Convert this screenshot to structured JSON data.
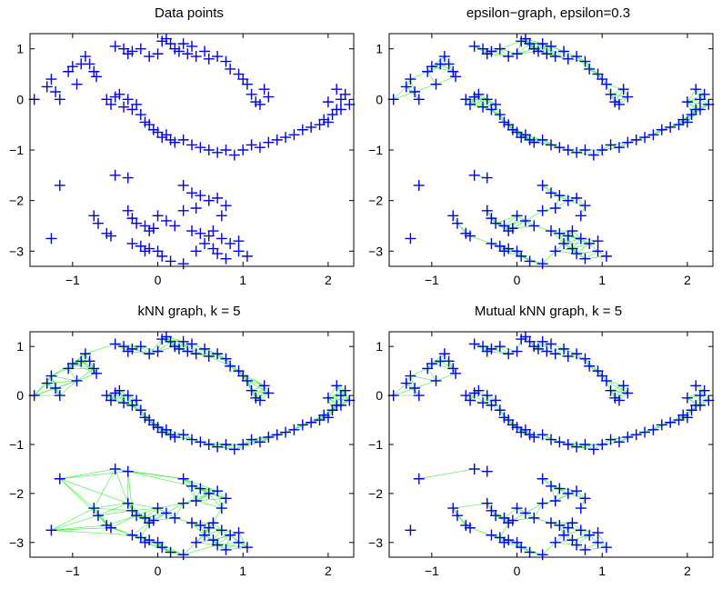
{
  "colors": {
    "points": "#0000ee",
    "edges": "#33ee33",
    "axes": "#000000"
  },
  "chart_data": [
    {
      "type": "scatter",
      "title": "Data points",
      "xlabel": "",
      "ylabel": "",
      "xlim": [
        -1.5,
        2.3
      ],
      "ylim": [
        -3.3,
        1.3
      ],
      "xticks": [
        -1,
        0,
        1,
        2
      ],
      "yticks": [
        1,
        0,
        -1,
        -2,
        -3
      ],
      "marker": "+",
      "edges": "none"
    },
    {
      "type": "scatter",
      "title": "epsilon−graph, epsilon=0.3",
      "xlabel": "",
      "ylabel": "",
      "xlim": [
        -1.5,
        2.3
      ],
      "ylim": [
        -3.3,
        1.3
      ],
      "xticks": [
        -1,
        0,
        1,
        2
      ],
      "yticks": [
        1,
        0,
        -1,
        -2,
        -3
      ],
      "marker": "+",
      "edges": "epsilon",
      "epsilon": 0.3
    },
    {
      "type": "scatter",
      "title": "kNN graph, k = 5",
      "xlabel": "",
      "ylabel": "",
      "xlim": [
        -1.5,
        2.3
      ],
      "ylim": [
        -3.3,
        1.3
      ],
      "xticks": [
        -1,
        0,
        1,
        2
      ],
      "yticks": [
        1,
        0,
        -1,
        -2,
        -3
      ],
      "marker": "+",
      "edges": "knn",
      "k": 5
    },
    {
      "type": "scatter",
      "title": "Mutual kNN graph, k = 5",
      "xlabel": "",
      "ylabel": "",
      "xlim": [
        -1.5,
        2.3
      ],
      "ylim": [
        -3.3,
        1.3
      ],
      "xticks": [
        -1,
        0,
        1,
        2
      ],
      "yticks": [
        1,
        0,
        -1,
        -2,
        -3
      ],
      "marker": "+",
      "edges": "mutual-knn",
      "k": 5
    }
  ],
  "points": {
    "x": [
      -1.45,
      -1.3,
      -1.25,
      -1.2,
      -1.15,
      -1.05,
      -1.0,
      -0.95,
      -0.9,
      -0.85,
      -0.8,
      -0.75,
      -0.72,
      -0.5,
      -0.4,
      -0.35,
      -0.3,
      -0.2,
      -0.1,
      0.0,
      0.05,
      0.1,
      0.15,
      0.2,
      0.25,
      0.3,
      0.35,
      0.4,
      0.45,
      0.55,
      0.6,
      0.7,
      0.8,
      0.85,
      0.95,
      1.0,
      1.05,
      1.1,
      1.15,
      1.2,
      1.25,
      1.3,
      -0.6,
      -0.55,
      -0.5,
      -0.45,
      -0.4,
      -0.35,
      -0.3,
      -0.25,
      -0.2,
      -0.15,
      -0.1,
      -0.05,
      0.0,
      0.05,
      0.1,
      0.15,
      0.2,
      0.3,
      0.4,
      0.5,
      0.6,
      0.7,
      0.8,
      0.9,
      1.0,
      1.1,
      1.2,
      1.3,
      1.4,
      1.5,
      1.6,
      1.7,
      1.8,
      1.9,
      2.0,
      2.05,
      2.1,
      2.15,
      2.2,
      2.25,
      1.95,
      2.0,
      2.1,
      2.15,
      -0.5,
      -0.35,
      -1.15,
      -1.25,
      0.3,
      0.4,
      0.5,
      0.6,
      0.7,
      0.8,
      0.45,
      0.75,
      -0.75,
      -0.7,
      -0.6,
      -0.55,
      -0.35,
      -0.3,
      -0.25,
      -0.15,
      -0.1,
      -0.05,
      0.0,
      0.1,
      0.2,
      0.3,
      0.4,
      0.5,
      0.6,
      0.65,
      0.75,
      0.85,
      0.95,
      -0.3,
      -0.2,
      -0.15,
      -0.1,
      0.0,
      0.05,
      0.15,
      0.3,
      0.45,
      0.55,
      0.65,
      0.7,
      0.8,
      0.95,
      1.05
    ],
    "y": [
      0.0,
      0.25,
      0.4,
      0.15,
      0.0,
      0.55,
      0.65,
      0.3,
      0.7,
      0.85,
      0.7,
      0.55,
      0.45,
      1.05,
      1.0,
      0.9,
      0.95,
      1.0,
      0.85,
      0.9,
      1.15,
      1.2,
      1.1,
      1.0,
      0.95,
      1.1,
      0.9,
      1.05,
      0.85,
      0.95,
      0.8,
      0.85,
      0.75,
      0.6,
      0.5,
      0.4,
      0.3,
      0.1,
      -0.05,
      -0.1,
      0.2,
      0.05,
      0.0,
      -0.1,
      0.05,
      0.1,
      -0.15,
      0.0,
      -0.2,
      -0.1,
      -0.3,
      -0.45,
      -0.5,
      -0.6,
      -0.65,
      -0.75,
      -0.7,
      -0.8,
      -0.85,
      -0.8,
      -0.9,
      -0.95,
      -1.0,
      -1.05,
      -1.0,
      -1.1,
      -1.0,
      -0.9,
      -0.95,
      -0.85,
      -0.8,
      -0.75,
      -0.7,
      -0.6,
      -0.55,
      -0.5,
      -0.45,
      -0.3,
      -0.2,
      0.0,
      0.1,
      -0.1,
      -0.4,
      -0.05,
      0.2,
      -0.2,
      -1.5,
      -1.55,
      -1.7,
      -2.75,
      -1.7,
      -1.85,
      -1.9,
      -2.0,
      -1.95,
      -2.1,
      -2.15,
      -2.3,
      -2.3,
      -2.45,
      -2.65,
      -2.7,
      -2.2,
      -2.35,
      -2.45,
      -2.5,
      -2.6,
      -2.55,
      -2.3,
      -2.4,
      -2.5,
      -2.2,
      -2.6,
      -2.65,
      -2.7,
      -2.6,
      -2.75,
      -2.85,
      -2.8,
      -2.85,
      -2.9,
      -3.0,
      -2.95,
      -3.0,
      -3.1,
      -3.2,
      -3.25,
      -3.0,
      -2.85,
      -2.95,
      -3.05,
      -3.15,
      -3.0,
      -3.1
    ]
  }
}
